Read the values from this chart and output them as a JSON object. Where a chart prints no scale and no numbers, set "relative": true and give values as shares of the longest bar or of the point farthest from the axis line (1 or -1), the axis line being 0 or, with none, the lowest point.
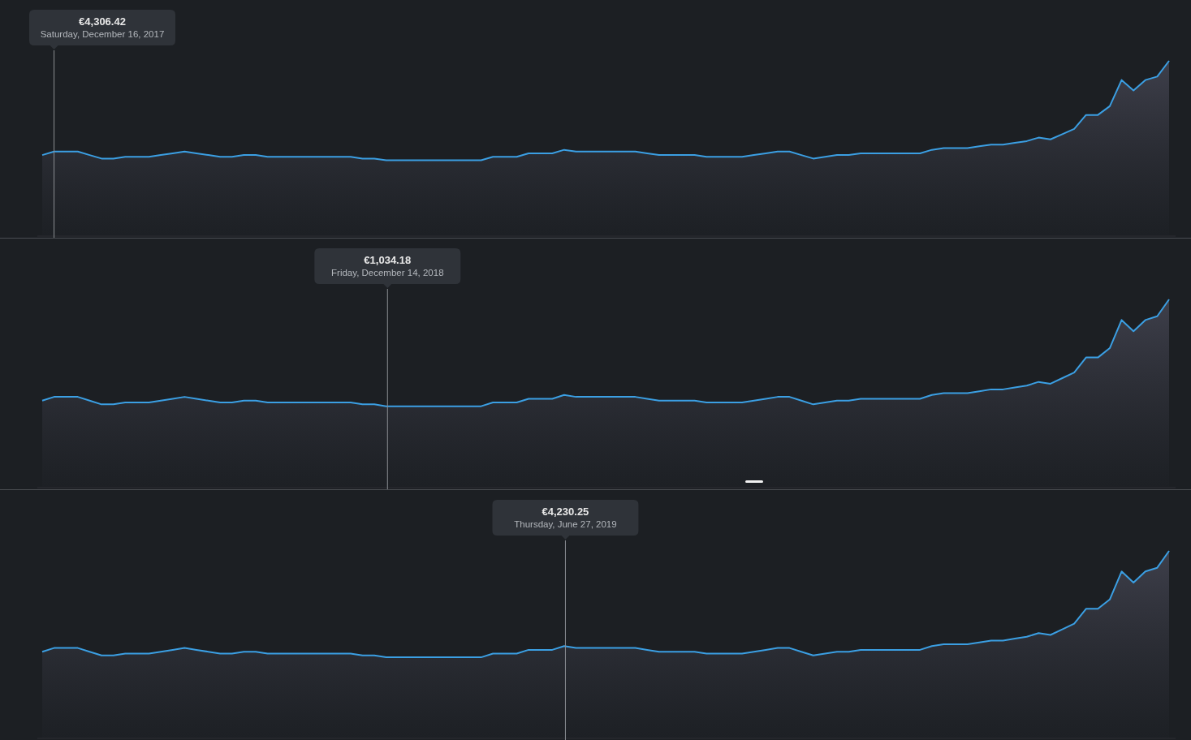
{
  "chart_data": [
    {
      "type": "area",
      "relative": true,
      "categories": [
        null,
        null,
        null,
        null,
        null,
        null,
        null,
        null,
        null,
        null,
        null,
        null,
        null,
        null,
        null,
        null,
        null,
        null,
        null,
        null,
        null,
        null,
        null,
        null,
        null,
        null,
        null,
        null,
        null,
        null,
        null,
        null,
        null,
        null,
        null,
        null,
        null,
        null,
        null,
        null,
        null,
        null,
        null,
        null,
        null,
        null,
        null,
        null,
        null,
        null,
        null,
        null,
        null,
        null,
        null,
        null,
        null,
        null,
        null,
        null,
        null,
        null,
        null,
        null,
        null,
        null,
        null,
        null,
        null,
        null,
        null,
        null,
        null,
        null,
        null,
        null,
        null,
        null,
        null,
        null,
        null,
        null,
        null,
        null,
        null,
        null,
        null,
        null,
        null,
        null,
        null,
        null,
        null,
        null,
        null,
        null
      ],
      "series": [
        {
          "color": "#3b9fe3",
          "values": [
            0.46,
            0.48,
            0.48,
            0.48,
            0.46,
            0.44,
            0.44,
            0.45,
            0.45,
            0.45,
            0.46,
            0.47,
            0.48,
            0.47,
            0.46,
            0.45,
            0.45,
            0.46,
            0.46,
            0.45,
            0.45,
            0.45,
            0.45,
            0.45,
            0.45,
            0.45,
            0.45,
            0.44,
            0.44,
            0.43,
            0.43,
            0.43,
            0.43,
            0.43,
            0.43,
            0.43,
            0.43,
            0.43,
            0.45,
            0.45,
            0.45,
            0.47,
            0.47,
            0.47,
            0.49,
            0.48,
            0.48,
            0.48,
            0.48,
            0.48,
            0.48,
            0.47,
            0.46,
            0.46,
            0.46,
            0.46,
            0.45,
            0.45,
            0.45,
            0.45,
            0.46,
            0.47,
            0.48,
            0.48,
            0.46,
            0.44,
            0.45,
            0.46,
            0.46,
            0.47,
            0.47,
            0.47,
            0.47,
            0.47,
            0.47,
            0.49,
            0.5,
            0.5,
            0.5,
            0.51,
            0.52,
            0.52,
            0.53,
            0.54,
            0.56,
            0.55,
            0.58,
            0.61,
            0.69,
            0.69,
            0.74,
            0.89,
            0.83,
            0.89,
            0.91,
            1
          ]
        }
      ],
      "annotations": [
        "€4,306.42",
        "Saturday, December 16, 2017"
      ]
    },
    {
      "type": "area",
      "relative": true,
      "categories": [
        null,
        null,
        null,
        null,
        null,
        null,
        null,
        null,
        null,
        null,
        null,
        null,
        null,
        null,
        null,
        null,
        null,
        null,
        null,
        null,
        null,
        null,
        null,
        null,
        null,
        null,
        null,
        null,
        null,
        null,
        null,
        null,
        null,
        null,
        null,
        null,
        null,
        null,
        null,
        null,
        null,
        null,
        null,
        null,
        null,
        null,
        null,
        null,
        null,
        null,
        null,
        null,
        null,
        null,
        null,
        null,
        null,
        null,
        null,
        null,
        null,
        null,
        null,
        null,
        null,
        null,
        null,
        null,
        null,
        null,
        null,
        null,
        null,
        null,
        null,
        null,
        null,
        null,
        null,
        null,
        null,
        null,
        null,
        null,
        null,
        null,
        null,
        null,
        null,
        null,
        null,
        null,
        null,
        null,
        null,
        null
      ],
      "series": [
        {
          "color": "#3b9fe3",
          "values": [
            0.46,
            0.48,
            0.48,
            0.48,
            0.46,
            0.44,
            0.44,
            0.45,
            0.45,
            0.45,
            0.46,
            0.47,
            0.48,
            0.47,
            0.46,
            0.45,
            0.45,
            0.46,
            0.46,
            0.45,
            0.45,
            0.45,
            0.45,
            0.45,
            0.45,
            0.45,
            0.45,
            0.44,
            0.44,
            0.43,
            0.43,
            0.43,
            0.43,
            0.43,
            0.43,
            0.43,
            0.43,
            0.43,
            0.45,
            0.45,
            0.45,
            0.47,
            0.47,
            0.47,
            0.49,
            0.48,
            0.48,
            0.48,
            0.48,
            0.48,
            0.48,
            0.47,
            0.46,
            0.46,
            0.46,
            0.46,
            0.45,
            0.45,
            0.45,
            0.45,
            0.46,
            0.47,
            0.48,
            0.48,
            0.46,
            0.44,
            0.45,
            0.46,
            0.46,
            0.47,
            0.47,
            0.47,
            0.47,
            0.47,
            0.47,
            0.49,
            0.5,
            0.5,
            0.5,
            0.51,
            0.52,
            0.52,
            0.53,
            0.54,
            0.56,
            0.55,
            0.58,
            0.61,
            0.69,
            0.69,
            0.74,
            0.89,
            0.83,
            0.89,
            0.91,
            1
          ]
        }
      ],
      "annotations": [
        "€1,034.18",
        "Friday, December 14, 2018"
      ]
    },
    {
      "type": "area",
      "relative": true,
      "categories": [
        null,
        null,
        null,
        null,
        null,
        null,
        null,
        null,
        null,
        null,
        null,
        null,
        null,
        null,
        null,
        null,
        null,
        null,
        null,
        null,
        null,
        null,
        null,
        null,
        null,
        null,
        null,
        null,
        null,
        null,
        null,
        null,
        null,
        null,
        null,
        null,
        null,
        null,
        null,
        null,
        null,
        null,
        null,
        null,
        null,
        null,
        null,
        null,
        null,
        null,
        null,
        null,
        null,
        null,
        null,
        null,
        null,
        null,
        null,
        null,
        null,
        null,
        null,
        null,
        null,
        null,
        null,
        null,
        null,
        null,
        null,
        null,
        null,
        null,
        null,
        null,
        null,
        null,
        null,
        null,
        null,
        null,
        null,
        null,
        null,
        null,
        null,
        null,
        null,
        null,
        null,
        null,
        null,
        null,
        null,
        null
      ],
      "series": [
        {
          "color": "#3b9fe3",
          "values": [
            0.46,
            0.48,
            0.48,
            0.48,
            0.46,
            0.44,
            0.44,
            0.45,
            0.45,
            0.45,
            0.46,
            0.47,
            0.48,
            0.47,
            0.46,
            0.45,
            0.45,
            0.46,
            0.46,
            0.45,
            0.45,
            0.45,
            0.45,
            0.45,
            0.45,
            0.45,
            0.45,
            0.44,
            0.44,
            0.43,
            0.43,
            0.43,
            0.43,
            0.43,
            0.43,
            0.43,
            0.43,
            0.43,
            0.45,
            0.45,
            0.45,
            0.47,
            0.47,
            0.47,
            0.49,
            0.48,
            0.48,
            0.48,
            0.48,
            0.48,
            0.48,
            0.47,
            0.46,
            0.46,
            0.46,
            0.46,
            0.45,
            0.45,
            0.45,
            0.45,
            0.46,
            0.47,
            0.48,
            0.48,
            0.46,
            0.44,
            0.45,
            0.46,
            0.46,
            0.47,
            0.47,
            0.47,
            0.47,
            0.47,
            0.47,
            0.49,
            0.5,
            0.5,
            0.5,
            0.51,
            0.52,
            0.52,
            0.53,
            0.54,
            0.56,
            0.55,
            0.58,
            0.61,
            0.69,
            0.69,
            0.74,
            0.89,
            0.83,
            0.89,
            0.91,
            1
          ]
        }
      ],
      "annotations": [
        "€4,230.25",
        "Thursday, June 27, 2019"
      ]
    }
  ]
}
